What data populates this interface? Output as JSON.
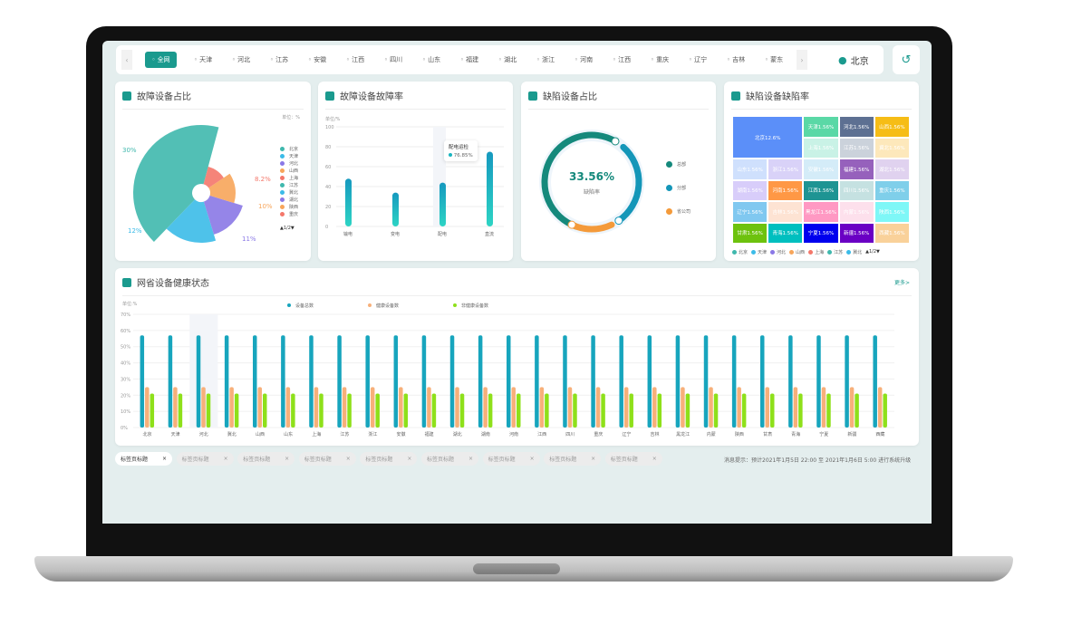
{
  "topbar": {
    "regions": [
      "全网",
      "天津",
      "河北",
      "江苏",
      "安徽",
      "江西",
      "四川",
      "山东",
      "福建",
      "湖北",
      "浙江",
      "河南",
      "江西",
      "重庆",
      "辽宁",
      "吉林",
      "蒙东"
    ],
    "current": "北京",
    "prev": "‹",
    "next": "›",
    "back": "↺"
  },
  "cards": {
    "fault_share": {
      "title": "故障设备占比",
      "unit": "单位：%",
      "legend": [
        "北京",
        "天津",
        "河北",
        "山西",
        "上海",
        "江苏",
        "冀北",
        "湖北",
        "陕西",
        "重庆"
      ],
      "pager": "▲1/2▼"
    },
    "fault_rate": {
      "title": "故障设备故障率",
      "unit": "单位/%",
      "tooltip": {
        "title": "配电运检",
        "value": "76.85%"
      }
    },
    "defect_share": {
      "title": "缺陷设备占比",
      "value": "33.56%",
      "label": "缺陷率",
      "legend": [
        "总部",
        "分部",
        "省公司"
      ]
    },
    "defect_rate": {
      "title": "缺陷设备缺陷率",
      "legend": [
        "北京",
        "天津",
        "河北",
        "山西",
        "上海",
        "江苏",
        "冀北"
      ],
      "pager": "▲1/2▼"
    },
    "health": {
      "title": "网省设备健康状态",
      "more": "更多>",
      "unit": "单位:%"
    }
  },
  "chart_data": [
    {
      "type": "pie",
      "variant": "rose",
      "labels": [
        "北京",
        "天津",
        "河北",
        "山西",
        "上海"
      ],
      "values": [
        30,
        12,
        11,
        10,
        8.2
      ],
      "data_labels": [
        "30%",
        "12%",
        "11%",
        "10%",
        "8.2%"
      ],
      "colors": [
        "#3fb8ad",
        "#3bbbe8",
        "#8a78e6",
        "#f7a55a",
        "#f4776a"
      ]
    },
    {
      "type": "bar",
      "categories": [
        "输电",
        "变电",
        "配电",
        "直流"
      ],
      "values": [
        48,
        34,
        44,
        75
      ],
      "ylim": [
        0,
        100
      ],
      "yticks": [
        "0",
        "20",
        "40",
        "60",
        "80",
        "100"
      ]
    },
    {
      "type": "pie",
      "variant": "donut",
      "labels": [
        "总部",
        "分部",
        "省公司"
      ],
      "colors": [
        "#15897c",
        "#1496b8",
        "#f49a3a"
      ]
    },
    {
      "type": "treemap",
      "cells": [
        {
          "label": "北京12.6%",
          "color": "#5b8ff9"
        },
        {
          "label": "天津1.56%",
          "color": "#5ad8a6"
        },
        {
          "label": "河北1.56%",
          "color": "#5d7092"
        },
        {
          "label": "山西1.56%",
          "color": "#f6bd16"
        },
        {
          "label": "上海1.56%",
          "color": "#c9f2e6"
        },
        {
          "label": "江苏1.56%",
          "color": "#cbd2db"
        },
        {
          "label": "冀北1.56%",
          "color": "#fde8bb"
        },
        {
          "label": "山东1.56%",
          "color": "#cfe0fd"
        },
        {
          "label": "浙江1.56%",
          "color": "#d9d2f8"
        },
        {
          "label": "安徽1.56%",
          "color": "#d4ecf8"
        },
        {
          "label": "福建1.56%",
          "color": "#9661bc"
        },
        {
          "label": "湖北1.56%",
          "color": "#e0d2ef"
        },
        {
          "label": "湖南1.56%",
          "color": "#d8cdfa"
        },
        {
          "label": "河南1.56%",
          "color": "#ff9845"
        },
        {
          "label": "江西1.56%",
          "color": "#1e9493"
        },
        {
          "label": "四川1.56%",
          "color": "#c5e1e1"
        },
        {
          "label": "重庆1.56%",
          "color": "#7fcfea"
        },
        {
          "label": "辽宁1.56%",
          "color": "#80c8f0"
        },
        {
          "label": "吉林1.56%",
          "color": "#fde3d3"
        },
        {
          "label": "黑龙江1.56%",
          "color": "#ff99c3"
        },
        {
          "label": "内蒙1.56%",
          "color": "#fde0ec"
        },
        {
          "label": "陕西1.56%",
          "color": "#7ef7f7"
        },
        {
          "label": "甘肃1.56%",
          "color": "#6dc20e"
        },
        {
          "label": "青海1.56%",
          "color": "#00bfbf"
        },
        {
          "label": "宁夏1.56%",
          "color": "#0000ee"
        },
        {
          "label": "新疆1.56%",
          "color": "#6a00c4"
        },
        {
          "label": "西藏1.56%",
          "color": "#f9d19a"
        }
      ]
    },
    {
      "type": "bar",
      "categories": [
        "北京",
        "天津",
        "河北",
        "冀北",
        "山西",
        "山东",
        "上海",
        "江苏",
        "浙江",
        "安徽",
        "福建",
        "湖北",
        "湖南",
        "河南",
        "江西",
        "四川",
        "重庆",
        "辽宁",
        "吉林",
        "黑龙江",
        "内蒙",
        "陕西",
        "甘肃",
        "青海",
        "宁夏",
        "新疆",
        "西藏"
      ],
      "series": [
        {
          "name": "设备总数",
          "color": "#17a5bd",
          "value": 57
        },
        {
          "name": "健康设备数",
          "color": "#f7b07a",
          "value": 25
        },
        {
          "name": "非健康设备数",
          "color": "#8ee01a",
          "value": 21
        }
      ],
      "ylim": [
        0,
        70
      ],
      "yticks": [
        "0%",
        "10%",
        "20%",
        "30%",
        "40%",
        "50%",
        "60%",
        "70%"
      ]
    }
  ],
  "footer": {
    "tabs": [
      "标签页标题",
      "标签页标题",
      "标签页标题",
      "标签页标题",
      "标签页标题",
      "标签页标题",
      "标签页标题",
      "标签页标题",
      "标签页标题"
    ],
    "close": "×",
    "message": "消息提示：预计2021年1月5日 22:00 至 2021年1月6日 5:00 进行系统升级"
  }
}
